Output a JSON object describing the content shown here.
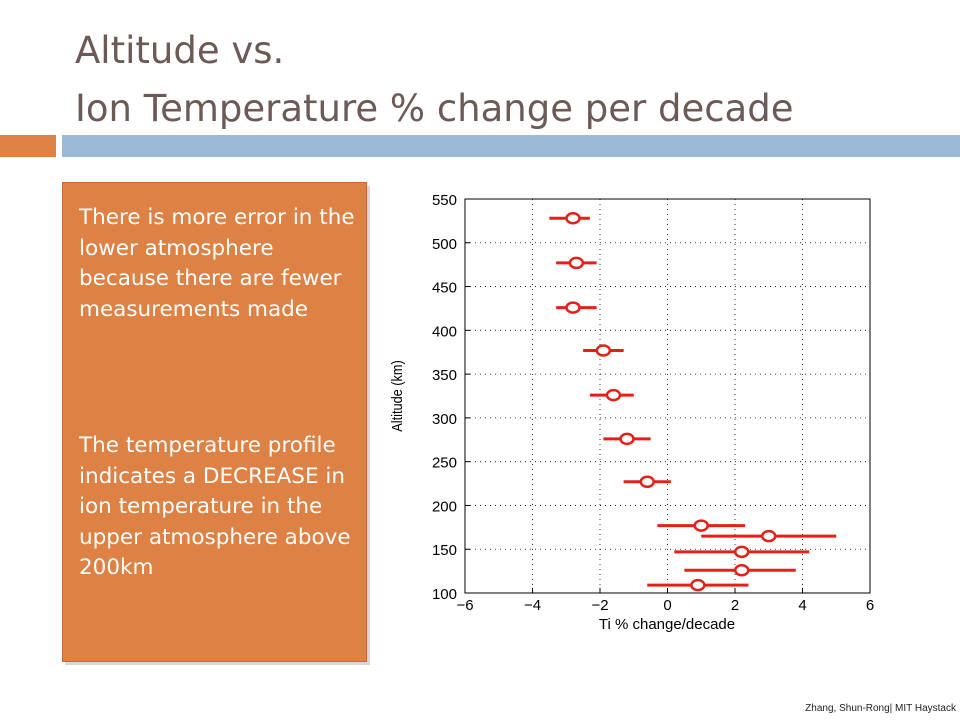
{
  "slide": {
    "title_line1": "Altitude vs.",
    "title_line2": "Ion Temperature % change per decade",
    "paragraph1": "There is more error in the lower atmosphere because there are fewer measurements made",
    "paragraph2": "The temperature profile indicates a DECREASE in ion temperature in the upper atmosphere above 200km",
    "credit": "Zhang, Shun-Rong| MIT Haystack",
    "colors": {
      "title": "#6b5a55",
      "orange": "#de8145",
      "blue": "#9cb9d8",
      "marker": "#e32119"
    }
  },
  "chart_data": {
    "type": "scatter",
    "title": "",
    "xlabel": "Ti % change/decade",
    "ylabel": "Altitude (km)",
    "xlim": [
      -6,
      6
    ],
    "ylim": [
      100,
      550
    ],
    "xticks": [
      -6,
      -4,
      -2,
      0,
      2,
      4,
      6
    ],
    "yticks": [
      100,
      150,
      200,
      250,
      300,
      350,
      400,
      450,
      500,
      550
    ],
    "grid": true,
    "points": [
      {
        "x": -2.8,
        "y": 528,
        "xerr_low": -3.5,
        "xerr_high": -2.3
      },
      {
        "x": -2.7,
        "y": 477,
        "xerr_low": -3.3,
        "xerr_high": -2.1
      },
      {
        "x": -2.8,
        "y": 426,
        "xerr_low": -3.3,
        "xerr_high": -2.1
      },
      {
        "x": -1.9,
        "y": 377,
        "xerr_low": -2.5,
        "xerr_high": -1.3
      },
      {
        "x": -1.6,
        "y": 326,
        "xerr_low": -2.3,
        "xerr_high": -1.0
      },
      {
        "x": -1.2,
        "y": 276,
        "xerr_low": -1.9,
        "xerr_high": -0.5
      },
      {
        "x": -0.6,
        "y": 227,
        "xerr_low": -1.3,
        "xerr_high": 0.1
      },
      {
        "x": 1.0,
        "y": 177,
        "xerr_low": -0.3,
        "xerr_high": 2.3
      },
      {
        "x": 3.0,
        "y": 165,
        "xerr_low": 1.0,
        "xerr_high": 5.0
      },
      {
        "x": 2.2,
        "y": 147,
        "xerr_low": 0.2,
        "xerr_high": 4.2
      },
      {
        "x": 2.2,
        "y": 126,
        "xerr_low": 0.5,
        "xerr_high": 3.8
      },
      {
        "x": 0.9,
        "y": 109,
        "xerr_low": -0.6,
        "xerr_high": 2.4
      }
    ]
  }
}
